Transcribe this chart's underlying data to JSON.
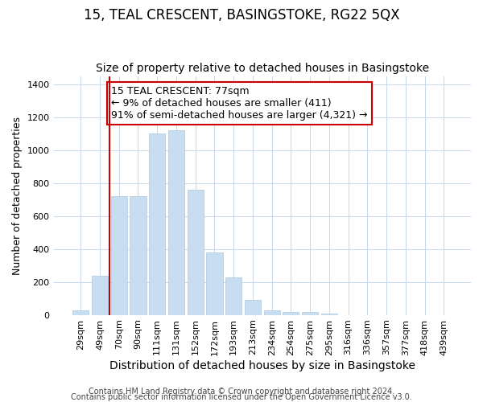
{
  "title": "15, TEAL CRESCENT, BASINGSTOKE, RG22 5QX",
  "subtitle": "Size of property relative to detached houses in Basingstoke",
  "xlabel": "Distribution of detached houses by size in Basingstoke",
  "ylabel": "Number of detached properties",
  "bar_labels": [
    "29sqm",
    "49sqm",
    "70sqm",
    "90sqm",
    "111sqm",
    "131sqm",
    "152sqm",
    "172sqm",
    "193sqm",
    "213sqm",
    "234sqm",
    "254sqm",
    "275sqm",
    "295sqm",
    "316sqm",
    "336sqm",
    "357sqm",
    "377sqm",
    "418sqm",
    "439sqm"
  ],
  "bar_values": [
    30,
    240,
    720,
    720,
    1100,
    1120,
    760,
    380,
    230,
    90,
    30,
    20,
    20,
    10,
    0,
    0,
    0,
    0,
    0,
    0
  ],
  "bar_color": "#c8ddf0",
  "bar_edge_color": "#aac8e0",
  "vline_index": 2,
  "vline_color": "#cc0000",
  "annotation_text": "15 TEAL CRESCENT: 77sqm\n← 9% of detached houses are smaller (411)\n91% of semi-detached houses are larger (4,321) →",
  "annotation_box_color": "white",
  "annotation_box_edge": "#cc0000",
  "ylim": [
    0,
    1450
  ],
  "yticks": [
    0,
    200,
    400,
    600,
    800,
    1000,
    1200,
    1400
  ],
  "footer_line1": "Contains HM Land Registry data © Crown copyright and database right 2024.",
  "footer_line2": "Contains public sector information licensed under the Open Government Licence v3.0.",
  "title_fontsize": 12,
  "subtitle_fontsize": 10,
  "xlabel_fontsize": 10,
  "ylabel_fontsize": 9,
  "tick_fontsize": 8,
  "annotation_fontsize": 9,
  "footer_fontsize": 7,
  "background_color": "#ffffff",
  "grid_color": "#c8d8ec"
}
